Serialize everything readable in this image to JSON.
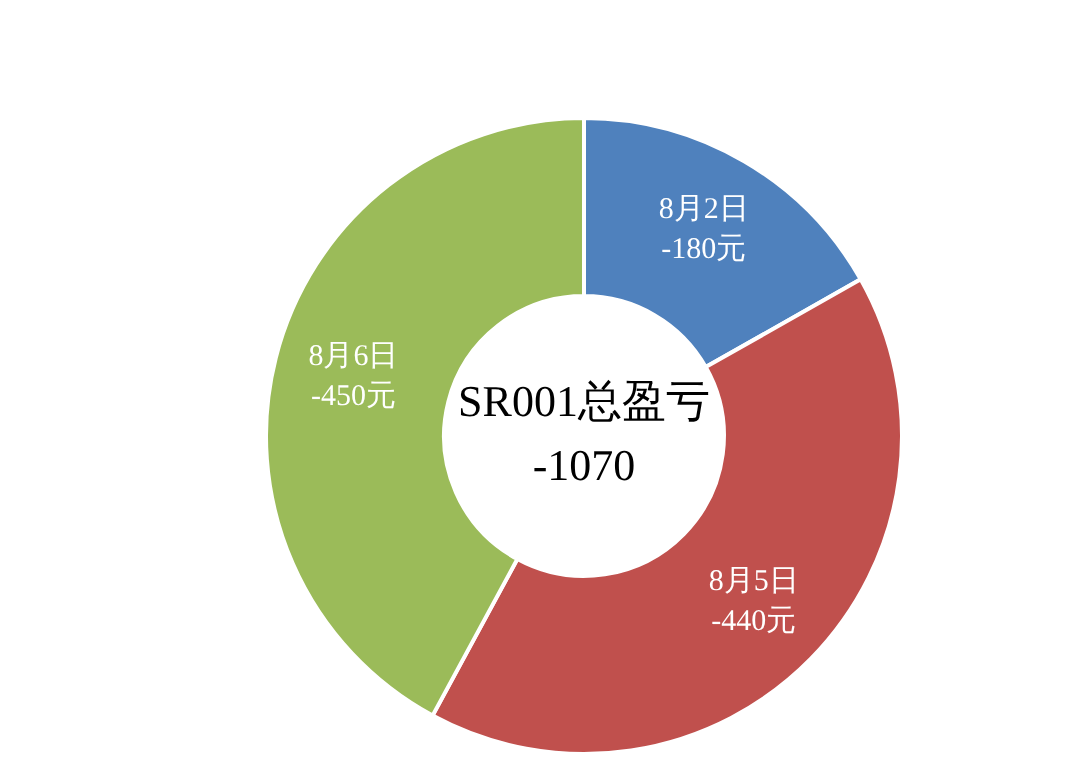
{
  "chart_data": {
    "type": "donut",
    "categories": [
      "8月2日 -180元",
      "8月5日 -440元",
      "8月6日 -450元"
    ],
    "values": [
      16.8,
      41.1,
      42.1
    ],
    "colors": [
      "#4f81bd",
      "#c0504d",
      "#9bbb59"
    ],
    "annotations": [
      "SR001总盈亏",
      "-1070"
    ],
    "legend": false
  }
}
